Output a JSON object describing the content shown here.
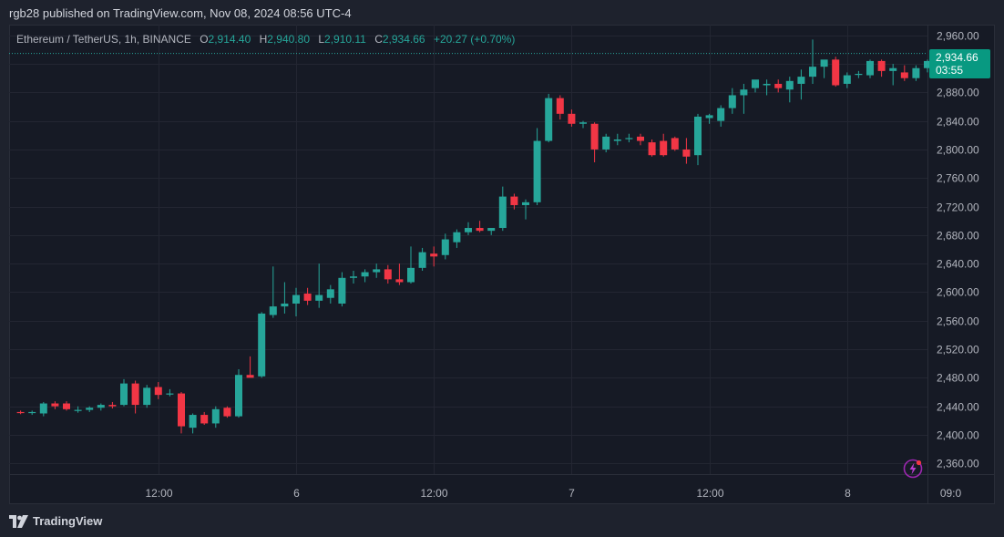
{
  "header": {
    "published_line": "rgb28 published on TradingView.com, Nov 08, 2024 08:56 UTC-4"
  },
  "legend": {
    "symbol": "Ethereum / TetherUS, 1h, BINANCE",
    "open_label": "O",
    "open": "2,914.40",
    "high_label": "H",
    "high": "2,940.80",
    "low_label": "L",
    "low": "2,910.11",
    "close_label": "C",
    "close": "2,934.66",
    "change": "+20.27 (+0.70%)"
  },
  "price_tag": {
    "price": "2,934.66",
    "countdown": "03:55"
  },
  "footer": {
    "brand": "TradingView"
  },
  "colors": {
    "up": "#26a69a",
    "down": "#f23645",
    "background": "#161a25",
    "grid": "#232632",
    "text": "#b2b5be"
  },
  "icons": {
    "logo": "tradingview-logo-icon",
    "flash": "lightning-icon"
  },
  "chart_data": {
    "type": "candlestick",
    "symbol": "Ethereum / TetherUS",
    "interval": "1h",
    "exchange": "BINANCE",
    "ylim": [
      2345,
      2975
    ],
    "y_ticks": [
      2960,
      2920,
      2880,
      2840,
      2800,
      2760,
      2720,
      2680,
      2640,
      2600,
      2560,
      2520,
      2480,
      2440,
      2400,
      2360
    ],
    "y_tick_labels": [
      "2,960.00",
      "2,920.00",
      "2,880.00",
      "2,840.00",
      "2,800.00",
      "2,760.00",
      "2,720.00",
      "2,680.00",
      "2,640.00",
      "2,600.00",
      "2,560.00",
      "2,520.00",
      "2,480.00",
      "2,440.00",
      "2,400.00",
      "2,360.00"
    ],
    "x_tick_labels": [
      {
        "label": "12:00",
        "index": 12
      },
      {
        "label": "6",
        "index": 24
      },
      {
        "label": "12:00",
        "index": 36
      },
      {
        "label": "7",
        "index": 48
      },
      {
        "label": "12:00",
        "index": 60
      },
      {
        "label": "8",
        "index": 72
      },
      {
        "label": "09:0",
        "index": 81
      }
    ],
    "last_price": 2934.66,
    "candles": [
      {
        "o": 2432,
        "h": 2434,
        "l": 2429,
        "c": 2431
      },
      {
        "o": 2431,
        "h": 2434,
        "l": 2428,
        "c": 2432
      },
      {
        "o": 2430,
        "h": 2446,
        "l": 2426,
        "c": 2444
      },
      {
        "o": 2444,
        "h": 2447,
        "l": 2436,
        "c": 2440
      },
      {
        "o": 2444,
        "h": 2447,
        "l": 2434,
        "c": 2436
      },
      {
        "o": 2434,
        "h": 2440,
        "l": 2431,
        "c": 2435
      },
      {
        "o": 2435,
        "h": 2440,
        "l": 2432,
        "c": 2438
      },
      {
        "o": 2438,
        "h": 2444,
        "l": 2434,
        "c": 2442
      },
      {
        "o": 2442,
        "h": 2446,
        "l": 2437,
        "c": 2440
      },
      {
        "o": 2442,
        "h": 2478,
        "l": 2440,
        "c": 2472
      },
      {
        "o": 2472,
        "h": 2476,
        "l": 2430,
        "c": 2442
      },
      {
        "o": 2442,
        "h": 2470,
        "l": 2438,
        "c": 2466
      },
      {
        "o": 2467,
        "h": 2474,
        "l": 2450,
        "c": 2456
      },
      {
        "o": 2458,
        "h": 2464,
        "l": 2454,
        "c": 2458
      },
      {
        "o": 2458,
        "h": 2460,
        "l": 2402,
        "c": 2412
      },
      {
        "o": 2410,
        "h": 2430,
        "l": 2402,
        "c": 2428
      },
      {
        "o": 2428,
        "h": 2432,
        "l": 2414,
        "c": 2416
      },
      {
        "o": 2416,
        "h": 2440,
        "l": 2410,
        "c": 2436
      },
      {
        "o": 2438,
        "h": 2440,
        "l": 2424,
        "c": 2426
      },
      {
        "o": 2426,
        "h": 2492,
        "l": 2424,
        "c": 2484
      },
      {
        "o": 2484,
        "h": 2510,
        "l": 2482,
        "c": 2480
      },
      {
        "o": 2482,
        "h": 2572,
        "l": 2480,
        "c": 2570
      },
      {
        "o": 2568,
        "h": 2636,
        "l": 2564,
        "c": 2580
      },
      {
        "o": 2580,
        "h": 2614,
        "l": 2570,
        "c": 2584
      },
      {
        "o": 2584,
        "h": 2606,
        "l": 2566,
        "c": 2596
      },
      {
        "o": 2598,
        "h": 2606,
        "l": 2582,
        "c": 2588
      },
      {
        "o": 2588,
        "h": 2640,
        "l": 2578,
        "c": 2596
      },
      {
        "o": 2592,
        "h": 2610,
        "l": 2584,
        "c": 2604
      },
      {
        "o": 2584,
        "h": 2628,
        "l": 2580,
        "c": 2620
      },
      {
        "o": 2620,
        "h": 2630,
        "l": 2612,
        "c": 2622
      },
      {
        "o": 2622,
        "h": 2632,
        "l": 2614,
        "c": 2628
      },
      {
        "o": 2628,
        "h": 2640,
        "l": 2620,
        "c": 2632
      },
      {
        "o": 2632,
        "h": 2638,
        "l": 2612,
        "c": 2618
      },
      {
        "o": 2618,
        "h": 2640,
        "l": 2610,
        "c": 2614
      },
      {
        "o": 2614,
        "h": 2664,
        "l": 2612,
        "c": 2634
      },
      {
        "o": 2634,
        "h": 2662,
        "l": 2630,
        "c": 2656
      },
      {
        "o": 2654,
        "h": 2664,
        "l": 2636,
        "c": 2650
      },
      {
        "o": 2652,
        "h": 2682,
        "l": 2646,
        "c": 2674
      },
      {
        "o": 2670,
        "h": 2688,
        "l": 2662,
        "c": 2684
      },
      {
        "o": 2684,
        "h": 2698,
        "l": 2680,
        "c": 2690
      },
      {
        "o": 2690,
        "h": 2700,
        "l": 2684,
        "c": 2686
      },
      {
        "o": 2686,
        "h": 2690,
        "l": 2680,
        "c": 2690
      },
      {
        "o": 2690,
        "h": 2748,
        "l": 2686,
        "c": 2734
      },
      {
        "o": 2734,
        "h": 2738,
        "l": 2716,
        "c": 2722
      },
      {
        "o": 2722,
        "h": 2730,
        "l": 2702,
        "c": 2726
      },
      {
        "o": 2726,
        "h": 2830,
        "l": 2722,
        "c": 2812
      },
      {
        "o": 2812,
        "h": 2878,
        "l": 2810,
        "c": 2872
      },
      {
        "o": 2872,
        "h": 2876,
        "l": 2842,
        "c": 2850
      },
      {
        "o": 2850,
        "h": 2856,
        "l": 2832,
        "c": 2836
      },
      {
        "o": 2836,
        "h": 2840,
        "l": 2830,
        "c": 2838
      },
      {
        "o": 2836,
        "h": 2838,
        "l": 2782,
        "c": 2800
      },
      {
        "o": 2800,
        "h": 2822,
        "l": 2796,
        "c": 2818
      },
      {
        "o": 2812,
        "h": 2822,
        "l": 2806,
        "c": 2814
      },
      {
        "o": 2816,
        "h": 2822,
        "l": 2810,
        "c": 2816
      },
      {
        "o": 2818,
        "h": 2822,
        "l": 2806,
        "c": 2812
      },
      {
        "o": 2810,
        "h": 2814,
        "l": 2790,
        "c": 2792
      },
      {
        "o": 2812,
        "h": 2822,
        "l": 2790,
        "c": 2792
      },
      {
        "o": 2816,
        "h": 2818,
        "l": 2798,
        "c": 2800
      },
      {
        "o": 2800,
        "h": 2816,
        "l": 2780,
        "c": 2790
      },
      {
        "o": 2792,
        "h": 2850,
        "l": 2778,
        "c": 2846
      },
      {
        "o": 2844,
        "h": 2850,
        "l": 2836,
        "c": 2848
      },
      {
        "o": 2840,
        "h": 2862,
        "l": 2832,
        "c": 2858
      },
      {
        "o": 2858,
        "h": 2886,
        "l": 2850,
        "c": 2876
      },
      {
        "o": 2876,
        "h": 2892,
        "l": 2850,
        "c": 2884
      },
      {
        "o": 2886,
        "h": 2896,
        "l": 2880,
        "c": 2898
      },
      {
        "o": 2890,
        "h": 2898,
        "l": 2876,
        "c": 2892
      },
      {
        "o": 2892,
        "h": 2898,
        "l": 2880,
        "c": 2886
      },
      {
        "o": 2884,
        "h": 2902,
        "l": 2866,
        "c": 2896
      },
      {
        "o": 2892,
        "h": 2912,
        "l": 2870,
        "c": 2902
      },
      {
        "o": 2902,
        "h": 2954,
        "l": 2892,
        "c": 2916
      },
      {
        "o": 2916,
        "h": 2924,
        "l": 2900,
        "c": 2926
      },
      {
        "o": 2926,
        "h": 2930,
        "l": 2888,
        "c": 2890
      },
      {
        "o": 2892,
        "h": 2908,
        "l": 2886,
        "c": 2904
      },
      {
        "o": 2906,
        "h": 2910,
        "l": 2900,
        "c": 2906
      },
      {
        "o": 2904,
        "h": 2926,
        "l": 2900,
        "c": 2924
      },
      {
        "o": 2924,
        "h": 2926,
        "l": 2902,
        "c": 2910
      },
      {
        "o": 2910,
        "h": 2920,
        "l": 2890,
        "c": 2914
      },
      {
        "o": 2908,
        "h": 2918,
        "l": 2896,
        "c": 2900
      },
      {
        "o": 2900,
        "h": 2918,
        "l": 2896,
        "c": 2914
      },
      {
        "o": 2914,
        "h": 2926,
        "l": 2908,
        "c": 2924
      },
      {
        "o": 2924,
        "h": 2928,
        "l": 2912,
        "c": 2914
      },
      {
        "o": 2914,
        "h": 2940,
        "l": 2910,
        "c": 2934
      }
    ]
  }
}
